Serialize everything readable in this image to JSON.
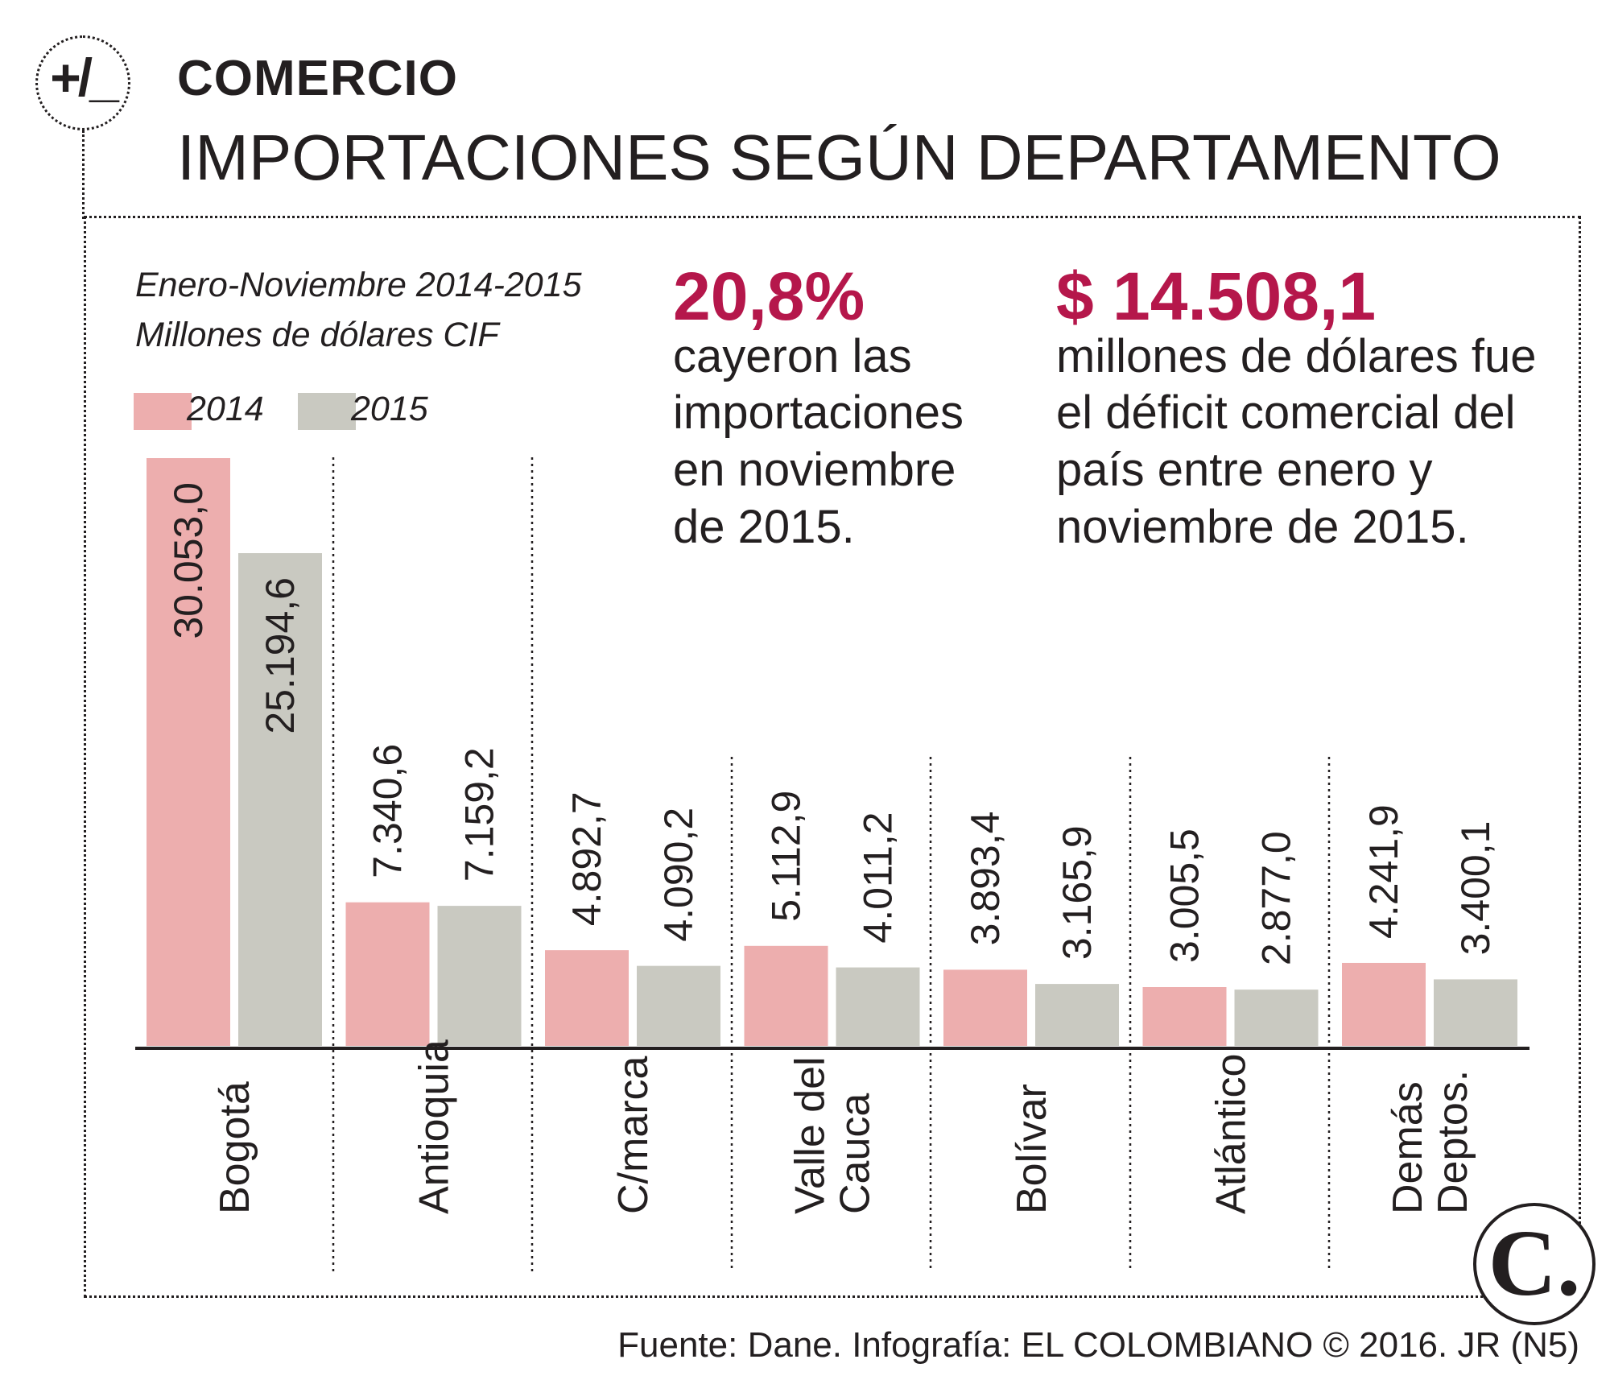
{
  "header": {
    "logo_glyph": "+/_",
    "section": "COMERCIO",
    "title": "IMPORTACIONES SEGÚN DEPARTAMENTO"
  },
  "subtitle": {
    "line1": "Enero-Noviembre 2014-2015",
    "line2": "Millones de dólares CIF"
  },
  "legend": [
    {
      "label": "2014",
      "color": "#edaeae"
    },
    {
      "label": "2015",
      "color": "#c9c9c1"
    }
  ],
  "stats": [
    {
      "value": "20,8%",
      "lines": [
        "cayeron las",
        "importaciones",
        "en noviembre",
        "de 2015."
      ]
    },
    {
      "value": "$ 14.508,1",
      "lines": [
        "millones de dólares fue",
        "el déficit comercial del",
        "país entre enero y",
        "noviembre de 2015."
      ]
    }
  ],
  "chart_data": {
    "type": "bar",
    "title": "IMPORTACIONES SEGÚN DEPARTAMENTO",
    "subtitle": "Enero-Noviembre 2014-2015, Millones de dólares CIF",
    "xlabel": "",
    "ylabel": "Millones de dólares CIF",
    "categories": [
      [
        "Bogotá"
      ],
      [
        "Antioquia"
      ],
      [
        "C/marca"
      ],
      [
        "Valle del",
        "Cauca"
      ],
      [
        "Bolívar"
      ],
      [
        "Atlántico"
      ],
      [
        "Demás",
        "Deptos."
      ]
    ],
    "series": [
      {
        "name": "2014",
        "color": "#edaeae",
        "values": [
          30053.0,
          7340.6,
          4892.7,
          5112.9,
          3893.4,
          3005.5,
          4241.9
        ],
        "labels": [
          "30.053,0",
          "7.340,6",
          "4.892,7",
          "5.112,9",
          "3.893,4",
          "3.005,5",
          "4.241,9"
        ]
      },
      {
        "name": "2015",
        "color": "#c9c9c1",
        "values": [
          25194.6,
          7159.2,
          4090.2,
          4011.2,
          3165.9,
          2877.0,
          3400.1
        ],
        "labels": [
          "25.194,6",
          "7.159,2",
          "4.090,2",
          "4.011,2",
          "3.165,9",
          "2.877,0",
          "3.400,1"
        ]
      }
    ],
    "ylim": [
      0,
      30053.0
    ],
    "grid": false,
    "legend": "top-left"
  },
  "footer": {
    "source": "Fuente: Dane. Infografía: EL COLOMBIANO © 2016. JR (N5)"
  },
  "badge": {
    "letter": "C."
  }
}
